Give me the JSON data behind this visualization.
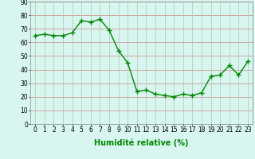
{
  "x": [
    0,
    1,
    2,
    3,
    4,
    5,
    6,
    7,
    8,
    9,
    10,
    11,
    12,
    13,
    14,
    15,
    16,
    17,
    18,
    19,
    20,
    21,
    22,
    23
  ],
  "y": [
    65,
    66,
    65,
    65,
    67,
    76,
    75,
    77,
    69,
    54,
    45,
    24,
    25,
    22,
    21,
    20,
    22,
    21,
    23,
    35,
    36,
    43,
    36,
    46
  ],
  "line_color": "#008800",
  "marker_color": "#008800",
  "bg_color": "#d8f5f0",
  "grid_color_h": "#cc8888",
  "grid_color_v": "#aaccaa",
  "xlabel": "Humidité relative (%)",
  "xlabel_color": "#008800",
  "ylim": [
    0,
    90
  ],
  "yticks": [
    0,
    10,
    20,
    30,
    40,
    50,
    60,
    70,
    80,
    90
  ],
  "xticks": [
    0,
    1,
    2,
    3,
    4,
    5,
    6,
    7,
    8,
    9,
    10,
    11,
    12,
    13,
    14,
    15,
    16,
    17,
    18,
    19,
    20,
    21,
    22,
    23
  ],
  "tick_color": "#000000",
  "tick_fontsize": 5.5,
  "xlabel_fontsize": 7,
  "marker_size": 2.5,
  "line_width": 1.0
}
